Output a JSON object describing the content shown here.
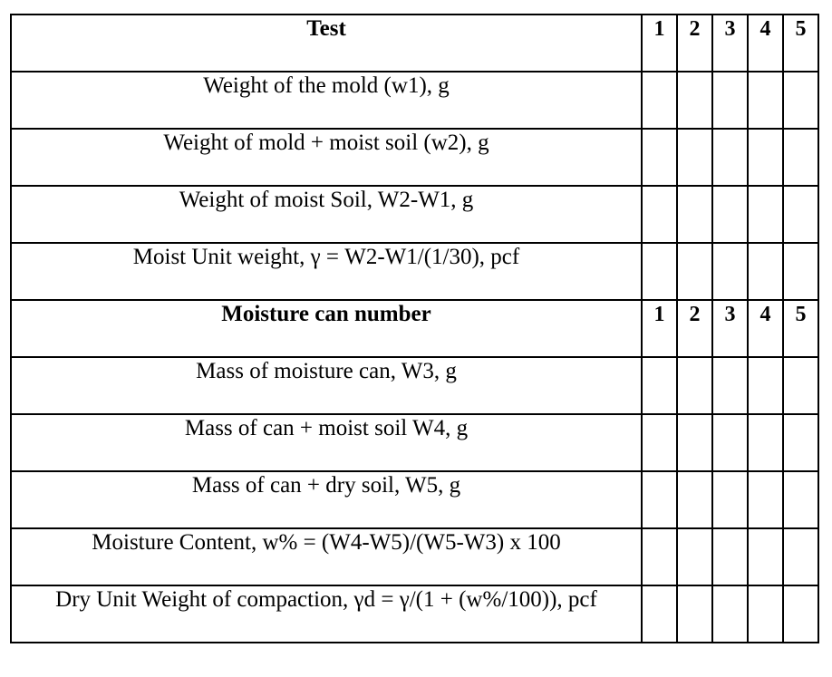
{
  "table": {
    "header1": {
      "label": "Test",
      "numbers": [
        "1",
        "2",
        "3",
        "4",
        "5"
      ]
    },
    "rows1": [
      "Weight of the mold (w1), g",
      "Weight of mold + moist soil (w2), g",
      "Weight of moist Soil, W2-W1, g",
      "Moist Unit weight, γ = W2-W1/(1/30), pcf"
    ],
    "header2": {
      "label": "Moisture can number",
      "numbers": [
        "1",
        "2",
        "3",
        "4",
        "5"
      ]
    },
    "rows2": [
      "Mass of moisture can, W3, g",
      "Mass of can + moist soil W4, g",
      "Mass of can + dry soil, W5, g",
      "Moisture Content, w% = (W4-W5)/(W5-W3) x 100",
      "Dry Unit Weight of compaction, γd = γ/(1 + (w%/100)), pcf"
    ]
  }
}
